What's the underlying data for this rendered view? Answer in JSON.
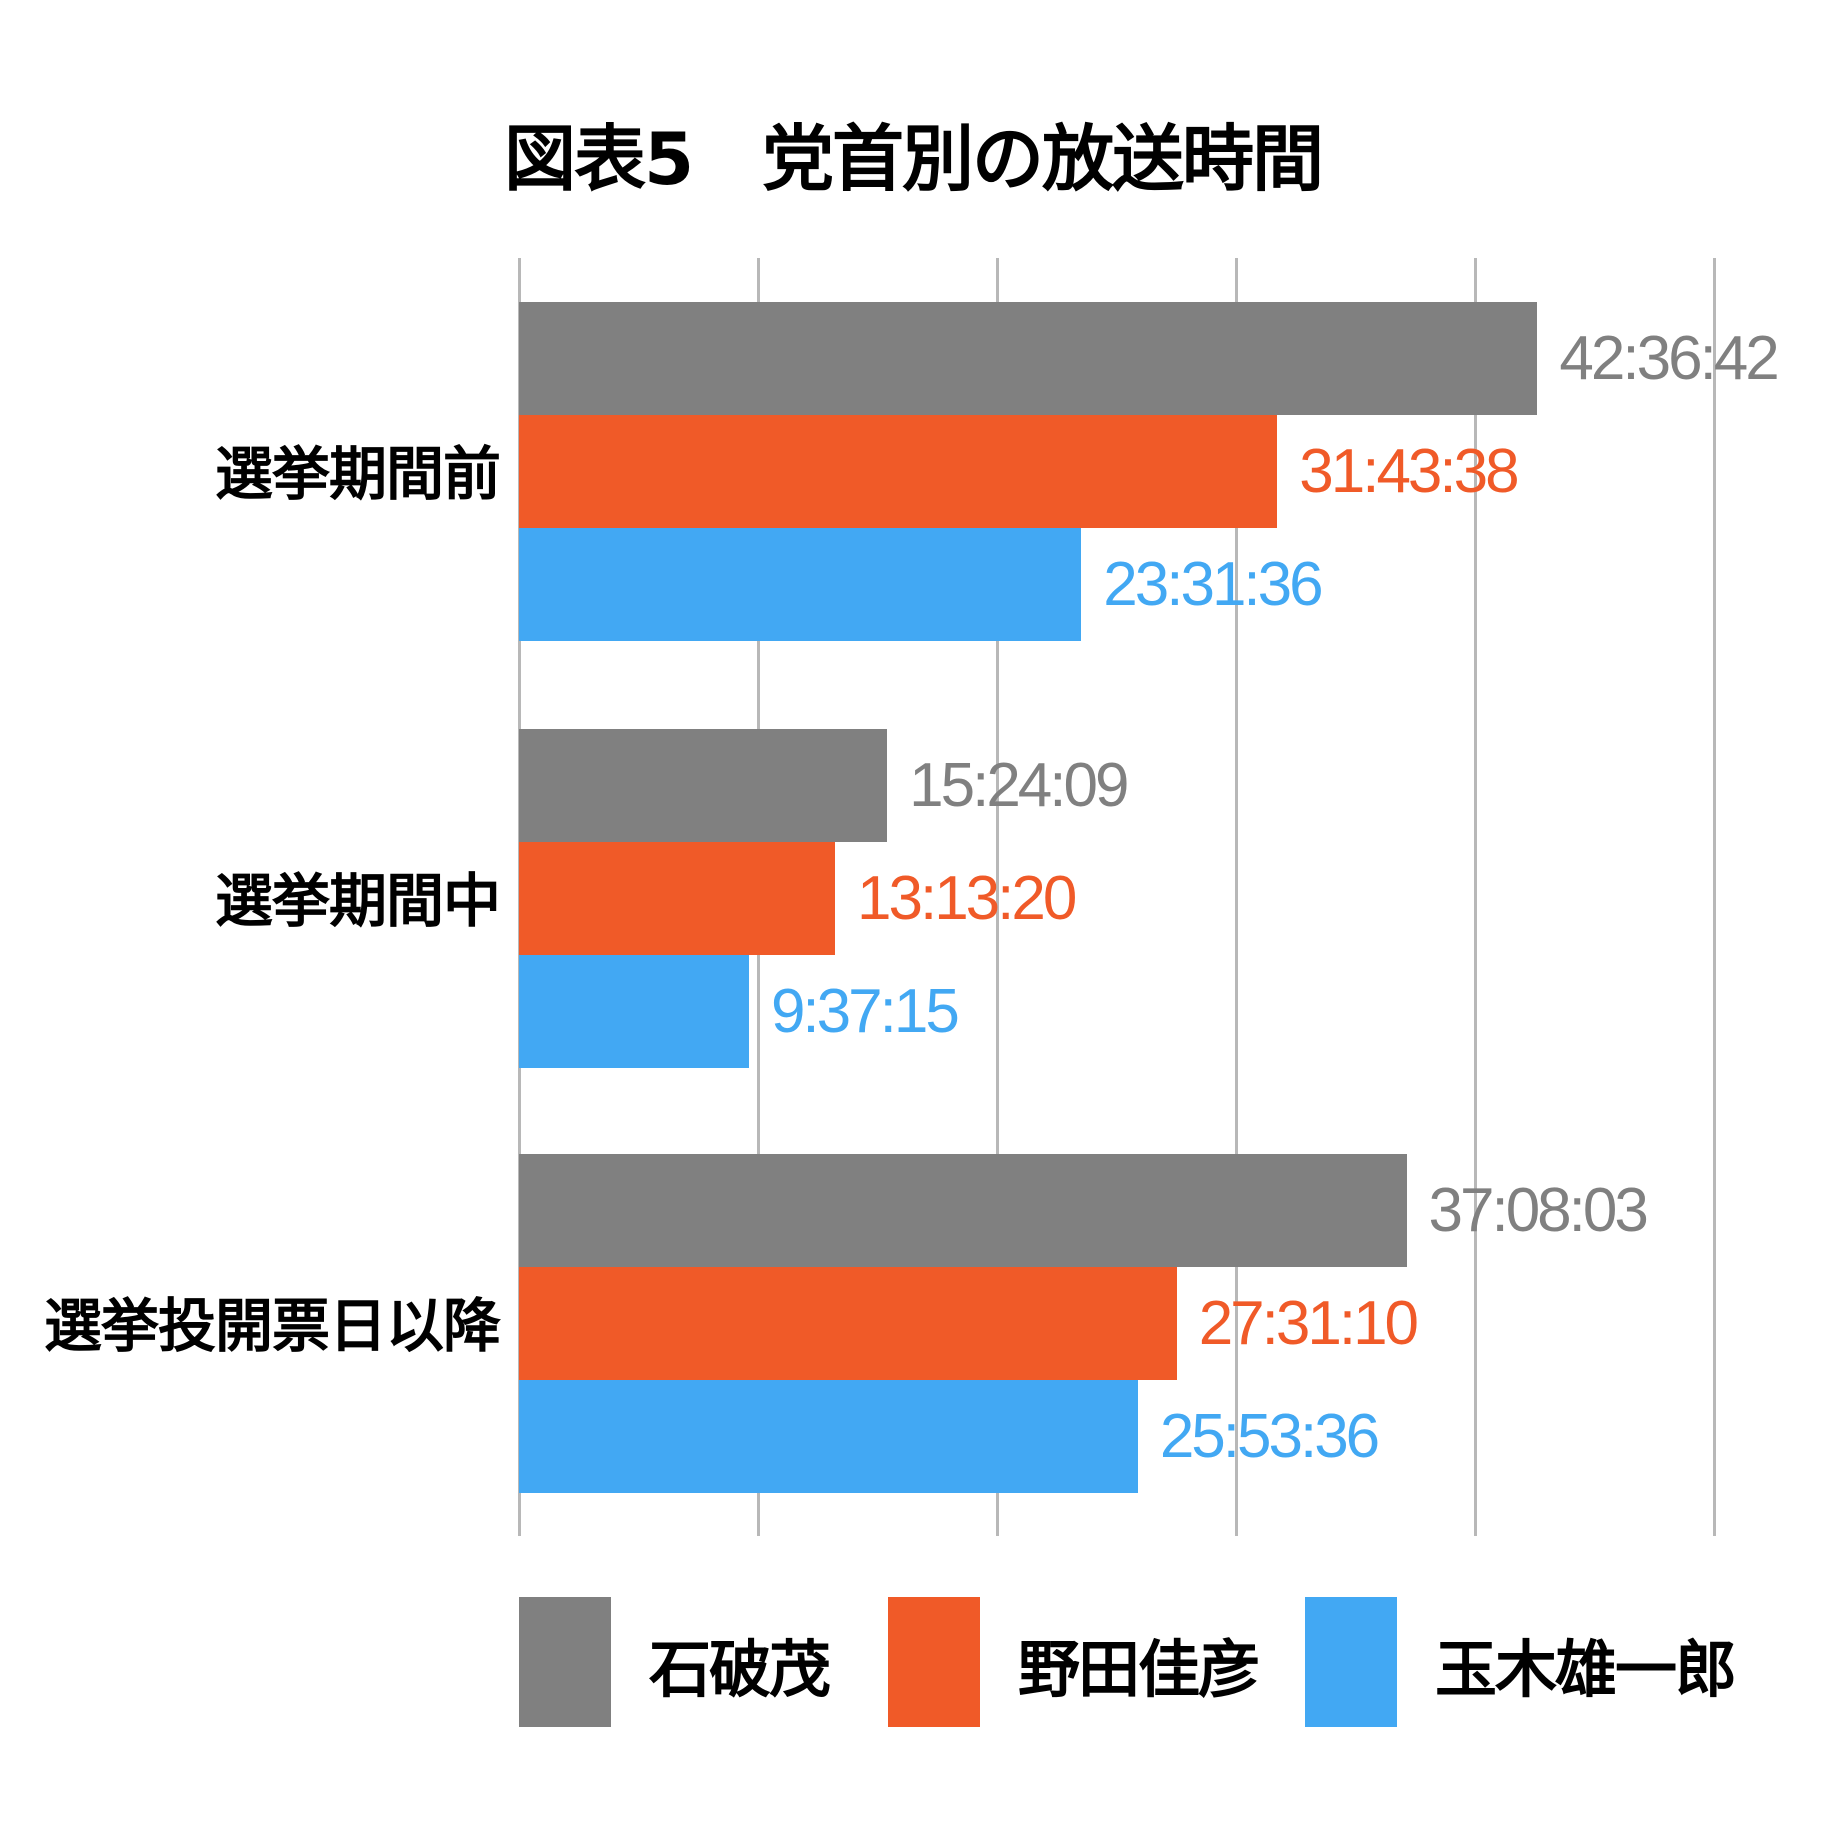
{
  "title": "図表5　党首別の放送時間",
  "chart_data": {
    "type": "bar",
    "orientation": "horizontal",
    "title": "図表5　党首別の放送時間",
    "xlabel": "",
    "ylabel": "",
    "xlim": [
      0,
      50
    ],
    "x_unit": "hours",
    "grid": true,
    "gridline_interval": 10,
    "tick_labels_visible": false,
    "legend_position": "bottom",
    "categories": [
      "選挙期間前",
      "選挙期間中",
      "選挙投開票日以降"
    ],
    "series": [
      {
        "name": "石破茂",
        "color": "#808080",
        "labels": [
          "42:36:42",
          "15:24:09",
          "37:08:03"
        ],
        "values": [
          42.612,
          15.403,
          37.134
        ]
      },
      {
        "name": "野田佳彦",
        "color": "#F05A28",
        "labels": [
          "31:43:38",
          "13:13:20",
          "27:31:10"
        ],
        "values": [
          31.727,
          13.222,
          27.519
        ]
      },
      {
        "name": "玉木雄一郎",
        "color": "#42A8F3",
        "labels": [
          "23:31:36",
          "9:37:15",
          "25:53:36"
        ],
        "values": [
          23.527,
          9.621,
          25.893
        ]
      }
    ]
  },
  "legend": [
    {
      "label": "石破茂",
      "color": "#808080"
    },
    {
      "label": "野田佳彦",
      "color": "#F05A28"
    },
    {
      "label": "玉木雄一郎",
      "color": "#42A8F3"
    }
  ]
}
